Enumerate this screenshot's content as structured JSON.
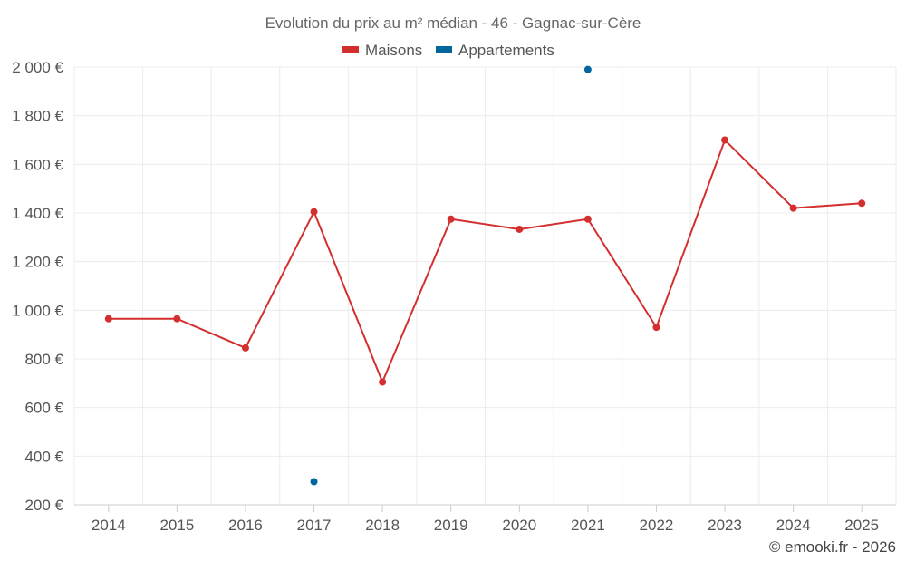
{
  "chart_data": {
    "type": "line",
    "title": "Evolution du prix au m² médian - 46 - Gagnac-sur-Cère",
    "categories": [
      "2014",
      "2015",
      "2016",
      "2017",
      "2018",
      "2019",
      "2020",
      "2021",
      "2022",
      "2023",
      "2024",
      "2025"
    ],
    "series": [
      {
        "name": "Maisons",
        "color": "#d32f2f",
        "values": [
          965,
          965,
          845,
          1405,
          705,
          1375,
          1333,
          1375,
          930,
          1700,
          1420,
          1440
        ]
      },
      {
        "name": "Appartements",
        "color": "#01659e",
        "values": [
          null,
          null,
          null,
          295,
          null,
          null,
          null,
          1990,
          null,
          null,
          null,
          null
        ]
      }
    ],
    "y_ticks": [
      "200 €",
      "400 €",
      "600 €",
      "800 €",
      "1 000 €",
      "1 200 €",
      "1 400 €",
      "1 600 €",
      "1 800 €",
      "2 000 €"
    ],
    "ylim": [
      200,
      2000
    ],
    "grid": true,
    "legend": "top-center",
    "credit": "© emooki.fr - 2026"
  }
}
